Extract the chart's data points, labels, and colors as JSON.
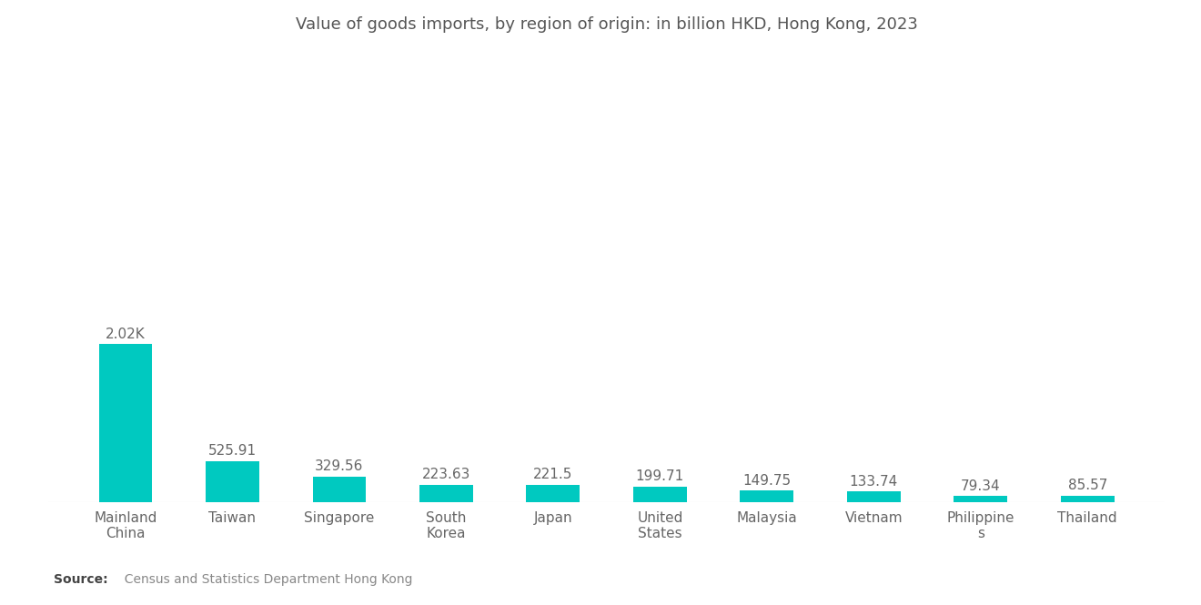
{
  "title": "Value of goods imports, by region of origin: in billion HKD, Hong Kong, 2023",
  "categories": [
    "Mainland\nChina",
    "Taiwan",
    "Singapore",
    "South\nKorea",
    "Japan",
    "United\nStates",
    "Malaysia",
    "Vietnam",
    "Philippine\ns",
    "Thailand"
  ],
  "values": [
    2020.0,
    525.91,
    329.56,
    223.63,
    221.5,
    199.71,
    149.75,
    133.74,
    79.34,
    85.57
  ],
  "value_labels": [
    "2.02K",
    "525.91",
    "329.56",
    "223.63",
    "221.5",
    "199.71",
    "149.75",
    "133.74",
    "79.34",
    "85.57"
  ],
  "bar_color": "#00C9C0",
  "background_color": "#ffffff",
  "title_color": "#555555",
  "title_fontsize": 13,
  "label_fontsize": 11,
  "source_bold": "Source:",
  "source_rest": "  Census and Statistics Department Hong Kong",
  "ylim": [
    0,
    5800
  ]
}
